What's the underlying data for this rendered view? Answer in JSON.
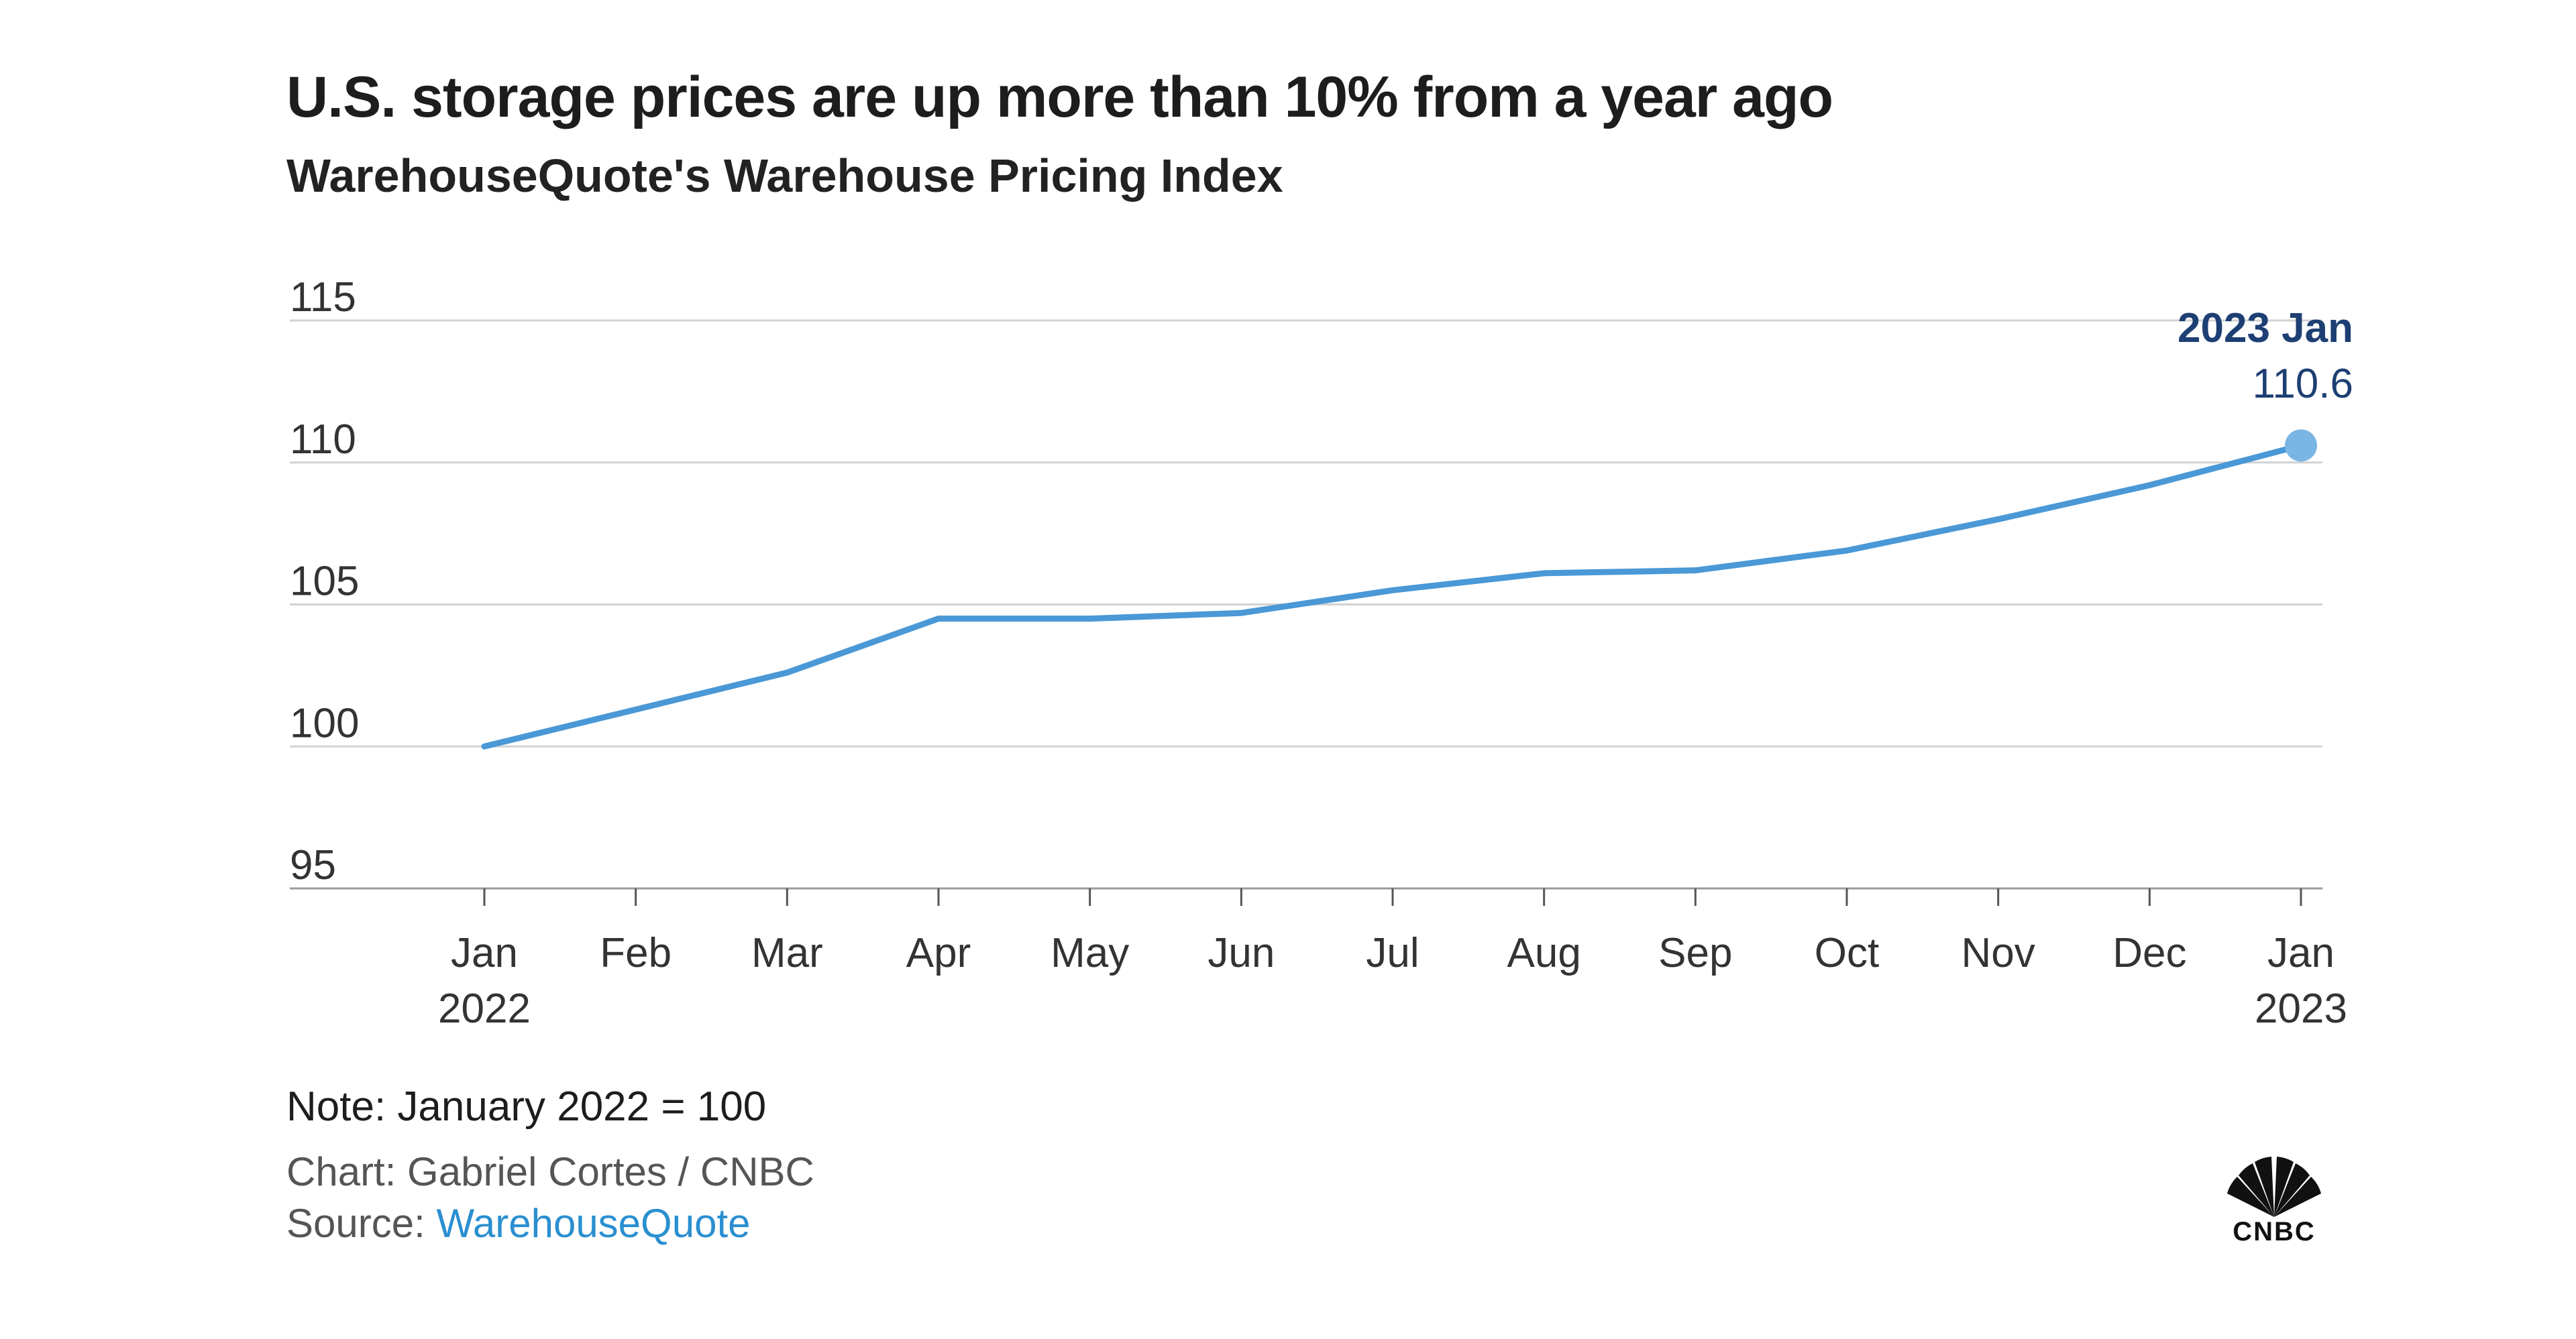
{
  "title": "U.S. storage prices are up more than 10% from a year ago",
  "subtitle": "WarehouseQuote's Warehouse Pricing Index",
  "chart_data": {
    "type": "line",
    "x": [
      "Jan 2022",
      "Feb",
      "Mar",
      "Apr",
      "May",
      "Jun",
      "Jul",
      "Aug",
      "Sep",
      "Oct",
      "Nov",
      "Dec",
      "Jan 2023"
    ],
    "x_tick_lines": [
      [
        "Jan",
        "2022"
      ],
      [
        "Feb"
      ],
      [
        "Mar"
      ],
      [
        "Apr"
      ],
      [
        "May"
      ],
      [
        "Jun"
      ],
      [
        "Jul"
      ],
      [
        "Aug"
      ],
      [
        "Sep"
      ],
      [
        "Oct"
      ],
      [
        "Nov"
      ],
      [
        "Dec"
      ],
      [
        "Jan",
        "2023"
      ]
    ],
    "series": [
      {
        "values": [
          100,
          101.3,
          102.6,
          104.5,
          104.5,
          104.7,
          105.5,
          106.1,
          106.2,
          106.9,
          108.0,
          109.2,
          110.6
        ],
        "color": "#4a98d6"
      }
    ],
    "yticks": [
      95,
      100,
      105,
      110,
      115
    ],
    "ylim": [
      95,
      115
    ],
    "grid": true,
    "annotation": {
      "label": "2023 Jan",
      "value": "110.6",
      "color": "#1d3f73"
    }
  },
  "note": "Note: January 2022 = 100",
  "credit": "Chart: Gabriel Cortes / CNBC",
  "source": {
    "label": "Source: ",
    "link": "WarehouseQuote"
  },
  "logo": {
    "icon": "peacock-icon",
    "text": "CNBC"
  }
}
